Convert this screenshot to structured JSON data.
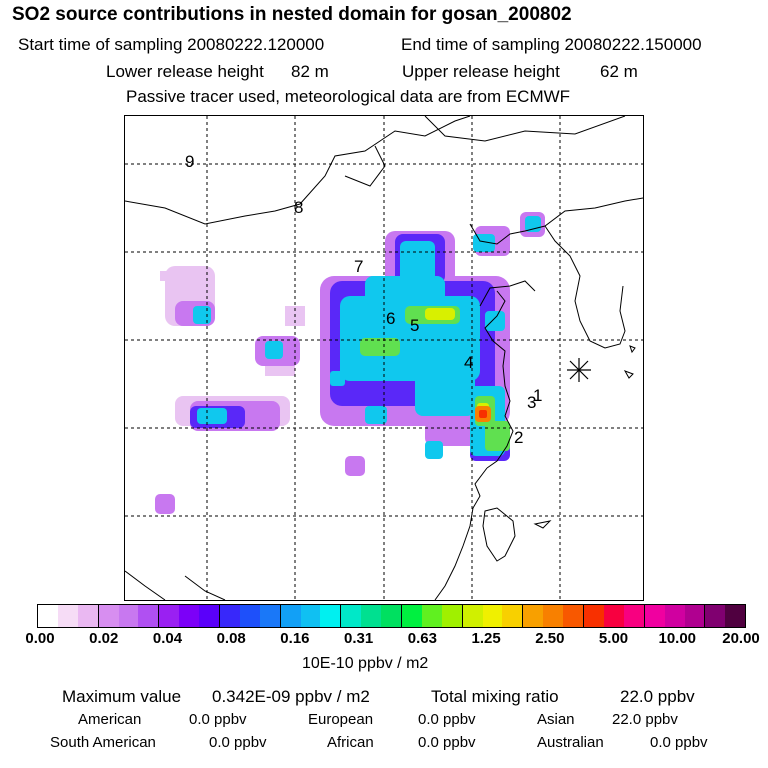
{
  "header": {
    "title": "SO2 source contributions in nested domain for gosan_200802",
    "start_label": "Start time of sampling 20080222.120000",
    "end_label": "End time of sampling 20080222.150000",
    "lower_label": "Lower release height",
    "lower_value": "82 m",
    "upper_label": "Upper release height",
    "upper_value": "62 m",
    "note": "Passive tracer used, meteorological data are from ECMWF"
  },
  "map": {
    "point_labels": [
      "1",
      "2",
      "3",
      "4",
      "5",
      "6",
      "7",
      "8",
      "9"
    ],
    "receptor_marker": "station-asterisk"
  },
  "colorbar": {
    "colors": [
      "#ffffff",
      "#f6dcf6",
      "#eab8f2",
      "#d78ef0",
      "#c878f0",
      "#b050f2",
      "#9a20f2",
      "#7c00f8",
      "#5a00fa",
      "#3828fa",
      "#1e50fa",
      "#1a78f8",
      "#12a0f6",
      "#10c0f2",
      "#00f0f0",
      "#00e8c8",
      "#00e090",
      "#00e060",
      "#00f040",
      "#60f020",
      "#a0f000",
      "#d0f000",
      "#f0f000",
      "#f8d000",
      "#f8a000",
      "#f88000",
      "#f85800",
      "#f83000",
      "#f80040",
      "#f80080",
      "#f000a0",
      "#d000a0",
      "#b00090",
      "#800070",
      "#500040"
    ],
    "ticks": [
      "0.00",
      "0.02",
      "0.04",
      "0.08",
      "0.16",
      "0.31",
      "0.63",
      "1.25",
      "2.50",
      "5.00",
      "10.00",
      "20.00"
    ],
    "units": "10E-10 ppbv / m2"
  },
  "stats": {
    "max_label": "Maximum value",
    "max_value": "0.342E-09 ppbv / m2",
    "total_label": "Total mixing ratio",
    "total_value": "22.0 ppbv",
    "regions": [
      {
        "name": "American",
        "value": "0.0 ppbv"
      },
      {
        "name": "European",
        "value": "0.0 ppbv"
      },
      {
        "name": "Asian",
        "value": "22.0 ppbv"
      },
      {
        "name": "South American",
        "value": "0.0 ppbv"
      },
      {
        "name": "African",
        "value": "0.0 ppbv"
      },
      {
        "name": "Australian",
        "value": "0.0 ppbv"
      }
    ]
  }
}
